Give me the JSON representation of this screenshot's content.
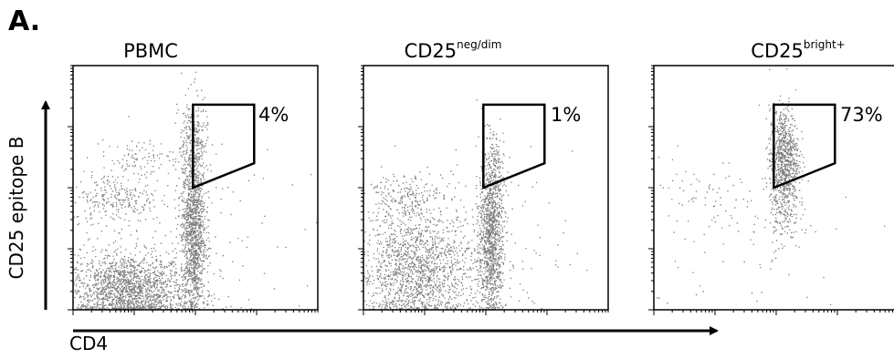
{
  "figure_label": "A.",
  "x_axis_label": "CD4",
  "y_axis_label": "CD25 epitope B",
  "chart_data": [
    {
      "type": "scatter",
      "title": "PBMC",
      "title_sup": "",
      "gate_percent": "4%",
      "populations": [
        {
          "name": "",
          "cx": 0.22,
          "cy": 0.08,
          "sx": 0.12,
          "sy": 0.075,
          "n": 1700
        },
        {
          "name": "",
          "cx": 0.17,
          "cy": 0.46,
          "sx": 0.09,
          "sy": 0.05,
          "n": 220
        },
        {
          "name": "",
          "cx": 0.27,
          "cy": 0.62,
          "sx": 0.07,
          "sy": 0.04,
          "n": 90
        },
        {
          "name": "",
          "cx": 0.49,
          "cy": 0.33,
          "sx": 0.025,
          "sy": 0.18,
          "n": 1300
        },
        {
          "name": "",
          "cx": 0.49,
          "cy": 0.7,
          "sx": 0.03,
          "sy": 0.09,
          "n": 200
        },
        {
          "name": "",
          "cx": 0.35,
          "cy": 0.25,
          "sx": 0.25,
          "sy": 0.22,
          "n": 260
        }
      ]
    },
    {
      "type": "scatter",
      "title": "CD25",
      "title_sup": "neg/dim",
      "gate_percent": "1%",
      "populations": [
        {
          "name": "",
          "cx": 0.22,
          "cy": 0.16,
          "sx": 0.12,
          "sy": 0.12,
          "n": 1500
        },
        {
          "name": "",
          "cx": 0.16,
          "cy": 0.47,
          "sx": 0.08,
          "sy": 0.05,
          "n": 200
        },
        {
          "name": "",
          "cx": 0.52,
          "cy": 0.32,
          "sx": 0.025,
          "sy": 0.17,
          "n": 1200
        },
        {
          "name": "",
          "cx": 0.53,
          "cy": 0.58,
          "sx": 0.02,
          "sy": 0.05,
          "n": 70
        },
        {
          "name": "",
          "cx": 0.35,
          "cy": 0.25,
          "sx": 0.25,
          "sy": 0.2,
          "n": 220
        }
      ]
    },
    {
      "type": "scatter",
      "title": "CD25",
      "title_sup": "bright+",
      "gate_percent": "73%",
      "populations": [
        {
          "name": "",
          "cx": 0.53,
          "cy": 0.63,
          "sx": 0.03,
          "sy": 0.1,
          "n": 750
        },
        {
          "name": "",
          "cx": 0.53,
          "cy": 0.45,
          "sx": 0.03,
          "sy": 0.1,
          "n": 200
        },
        {
          "name": "",
          "cx": 0.22,
          "cy": 0.45,
          "sx": 0.1,
          "sy": 0.08,
          "n": 60
        },
        {
          "name": "",
          "cx": 0.35,
          "cy": 0.3,
          "sx": 0.25,
          "sy": 0.2,
          "n": 80
        }
      ]
    }
  ]
}
